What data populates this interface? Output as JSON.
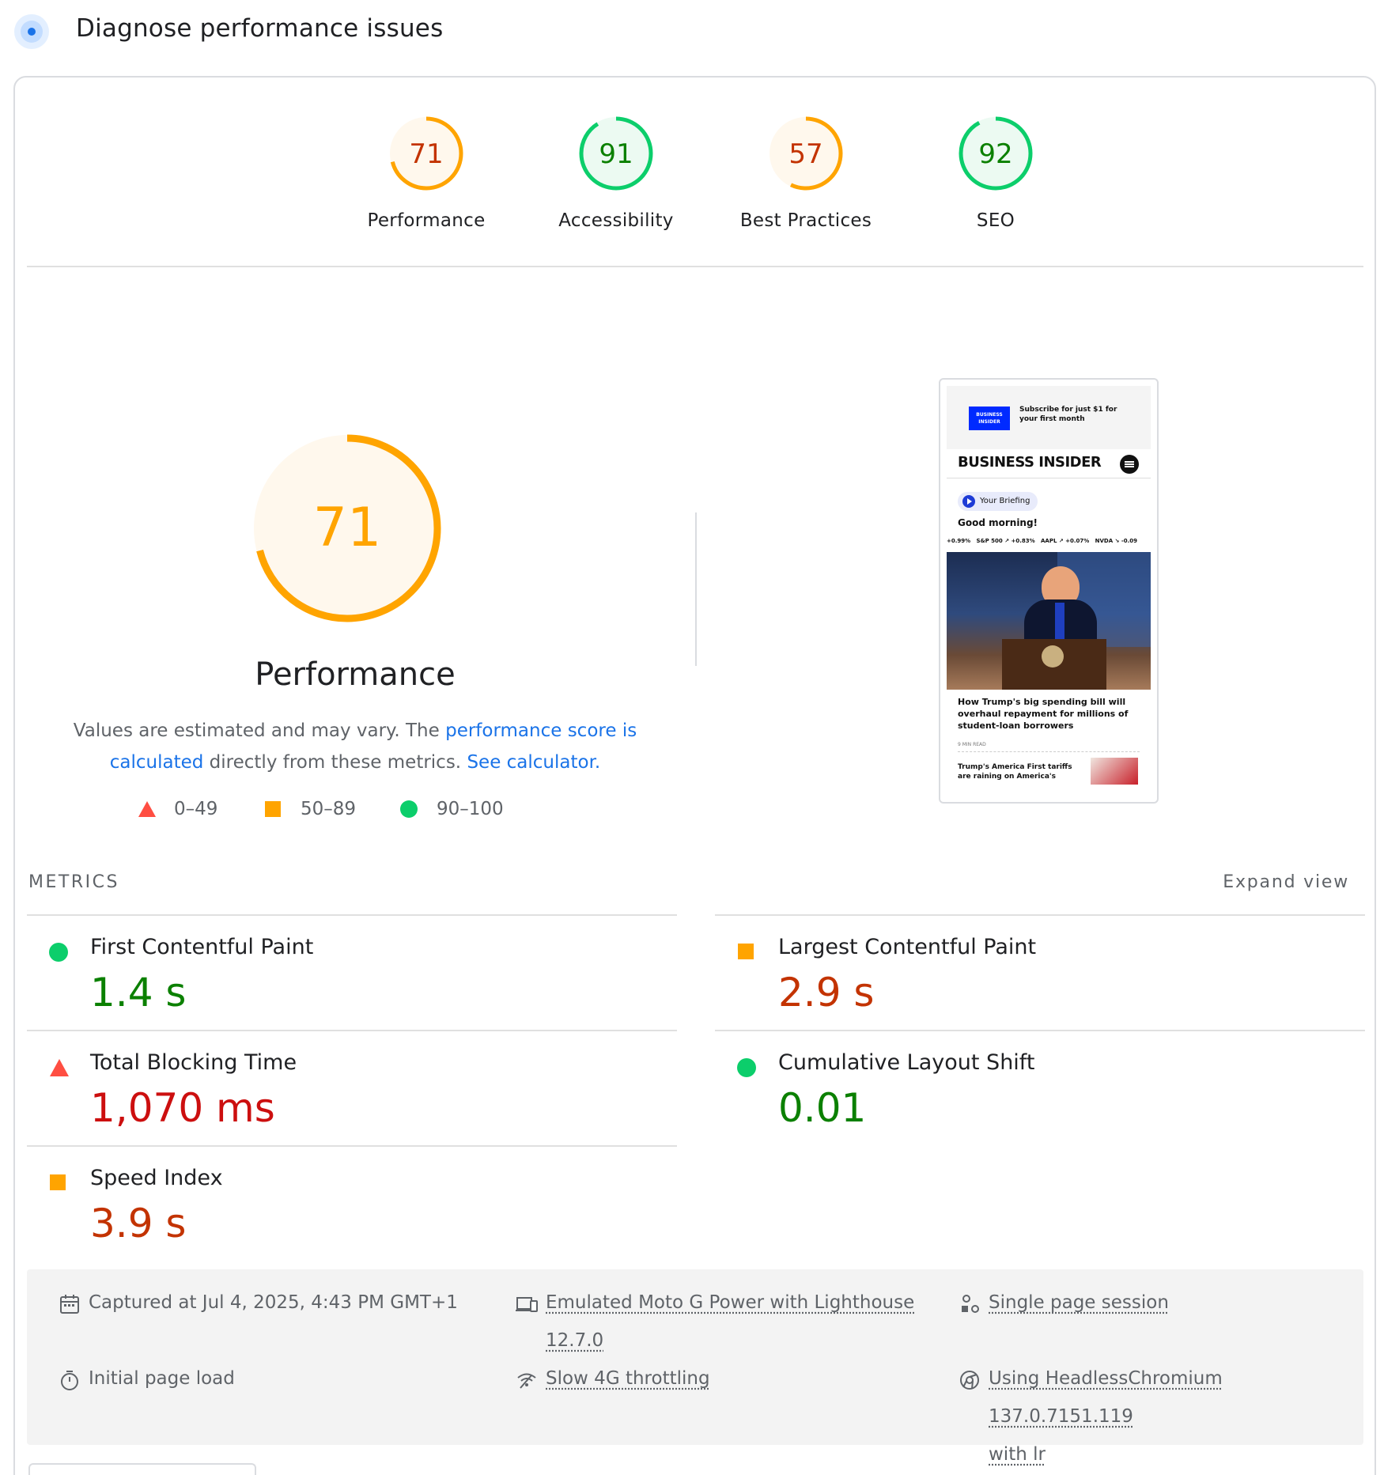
{
  "header": {
    "title": "Diagnose performance issues"
  },
  "categories": [
    {
      "score": "71",
      "label": "Performance",
      "value": 71,
      "rating": "average"
    },
    {
      "score": "91",
      "label": "Accessibility",
      "value": 91,
      "rating": "pass"
    },
    {
      "score": "57",
      "label": "Best Practices",
      "value": 57,
      "rating": "average"
    },
    {
      "score": "92",
      "label": "SEO",
      "value": 92,
      "rating": "pass"
    }
  ],
  "performance": {
    "score": "71",
    "value": 71,
    "title": "Performance",
    "desc_prefix": "Values are estimated and may vary. The ",
    "desc_link1": "performance score is calculated",
    "desc_middle": " directly from these metrics. ",
    "desc_link2": "See calculator."
  },
  "legend": [
    "0–49",
    "50–89",
    "90–100"
  ],
  "colors": {
    "pass": "#0cce6b",
    "average": "#ffa400",
    "fail": "#ff4e42",
    "link": "#1a73e8"
  },
  "metrics": {
    "title": "METRICS",
    "expand_label": "Expand view",
    "items": [
      {
        "name": "First Contentful Paint",
        "value": "1.4 s",
        "rating": "pass"
      },
      {
        "name": "Largest Contentful Paint",
        "value": "2.9 s",
        "rating": "average"
      },
      {
        "name": "Total Blocking Time",
        "value": "1,070 ms",
        "rating": "fail"
      },
      {
        "name": "Cumulative Layout Shift",
        "value": "0.01",
        "rating": "pass"
      },
      {
        "name": "Speed Index",
        "value": "3.9 s",
        "rating": "average"
      }
    ]
  },
  "footer": {
    "captured": "Captured at Jul 4, 2025, 4:43 PM GMT+1",
    "device_line1": "Emulated Moto G Power with Lighthouse",
    "device_line2": "12.7.0",
    "session": "Single page session",
    "load": "Initial page load",
    "throttling": "Slow 4G throttling",
    "browser_line1": "Using HeadlessChromium 137.0.7151.119",
    "browser_line2": "with lr"
  },
  "thumbnail": {
    "ad_logo": "BUSINESS INSIDER",
    "ad_text": "Subscribe for just $1 for your first month",
    "brand": "BUSINESS INSIDER",
    "pill": "Your Briefing",
    "greeting": "Good morning!",
    "ticker": "+0.99%   S&P 500 ↗ +0.83%   AAPL ↗ +0.07%   NVDA ↘ -0.09",
    "headline": "How Trump's big spending bill will overhaul repayment for millions of student-loan borrowers",
    "read": "9 MIN READ",
    "headline2": "Trump's America First tariffs are raining on America's"
  }
}
